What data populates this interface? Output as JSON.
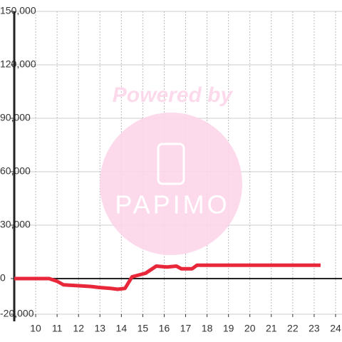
{
  "chart_data": {
    "type": "line",
    "watermark": {
      "title": "Powered by",
      "logo": "PAPIMO"
    },
    "x": [
      9.0,
      10.63,
      11.0,
      11.3,
      12.0,
      12.63,
      12.97,
      13.5,
      13.83,
      14.17,
      14.5,
      15.13,
      15.63,
      16.13,
      16.57,
      16.8,
      17.3,
      17.53,
      23.3
    ],
    "series": [
      {
        "color": "#e8283a",
        "values": [
          0,
          0,
          -1500,
          -3500,
          -4000,
          -4500,
          -5000,
          -5500,
          -6000,
          -5500,
          1000,
          3000,
          7000,
          6500,
          7000,
          5500,
          5500,
          7500,
          7500
        ]
      }
    ],
    "xlim": [
      9.0,
      24.3
    ],
    "xticks": [
      10,
      11,
      12,
      13,
      14,
      15,
      16,
      17,
      18,
      19,
      20,
      21,
      22,
      23,
      24
    ],
    "ylim": [
      -20000,
      150000
    ],
    "yticks": [
      {
        "value": -20000,
        "label": "-20,000"
      },
      0,
      {
        "value": 30000,
        "label": "30,000"
      },
      {
        "value": 60000,
        "label": "60,000"
      },
      {
        "value": 90000,
        "label": "90,000"
      },
      {
        "value": 120000,
        "label": "120,000"
      },
      {
        "value": 150000,
        "label": "150,000"
      }
    ],
    "grid": true
  }
}
